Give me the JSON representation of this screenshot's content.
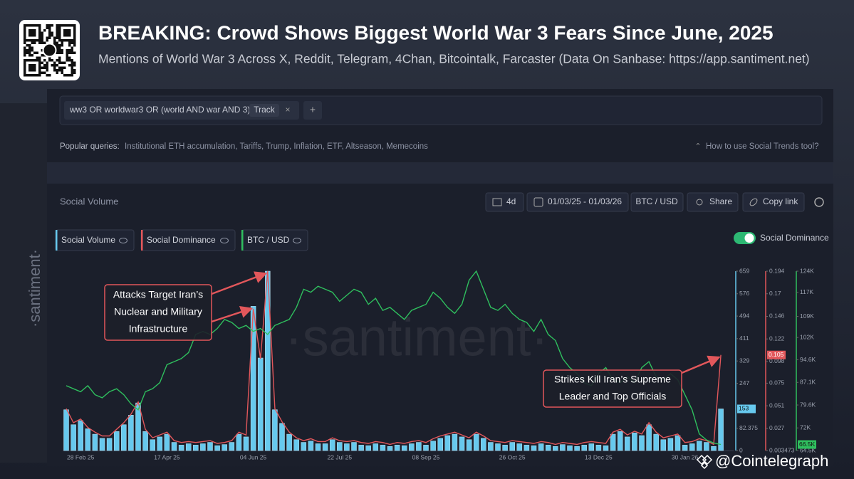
{
  "header": {
    "title": "BREAKING: Crowd Shows Biggest World War 3 Fears Since June, 2025",
    "subtitle": "Mentions of World War 3 Across X, Reddit, Telegram, 4Chan, Bitcointalk, Farcaster (Data On Sanbase: https://app.santiment.net)"
  },
  "query": {
    "text": "ww3 OR worldwar3 OR (world AND war AND 3)",
    "track_label": "Track"
  },
  "popular": {
    "label": "Popular queries:",
    "items": "Institutional ETH accumulation, Tariffs, Trump, Inflation, ETF, Altseason, Memecoins",
    "help": "How to use Social Trends tool?"
  },
  "toolbar": {
    "title": "Social Volume",
    "interval": "4d",
    "date_range": "01/03/25 - 01/03/26",
    "pair": "BTC / USD",
    "share": "Share",
    "copy": "Copy link",
    "toggle_label": "Social Dominance"
  },
  "watermark": "·santiment·",
  "credit": "@Cointelegraph",
  "chart_data": {
    "type": "bar",
    "categories": [
      null,
      null,
      "28 Feb 25",
      null,
      null,
      null,
      null,
      null,
      null,
      null,
      null,
      null,
      null,
      null,
      "17 Apr 25",
      null,
      null,
      null,
      null,
      null,
      null,
      null,
      null,
      null,
      null,
      null,
      "04 Jun 25",
      null,
      null,
      null,
      null,
      null,
      null,
      null,
      null,
      null,
      null,
      null,
      "22 Jul 25",
      null,
      null,
      null,
      null,
      null,
      null,
      null,
      null,
      null,
      null,
      null,
      "08 Sep 25",
      null,
      null,
      null,
      null,
      null,
      null,
      null,
      null,
      null,
      null,
      null,
      "26 Oct 25",
      null,
      null,
      null,
      null,
      null,
      null,
      null,
      null,
      null,
      null,
      null,
      "13 Dec 25",
      null,
      null,
      null,
      null,
      null,
      null,
      null,
      null,
      null,
      null,
      null,
      "30 Jan 26",
      null,
      null,
      null,
      null,
      null
    ],
    "series": [
      {
        "name": "Social Volume",
        "type": "bar",
        "color": "#67c9ee",
        "last_label": "153",
        "values": [
          150,
          95,
          110,
          80,
          60,
          45,
          45,
          70,
          95,
          130,
          175,
          70,
          40,
          50,
          60,
          30,
          20,
          25,
          20,
          25,
          30,
          18,
          22,
          30,
          60,
          50,
          530,
          340,
          659,
          150,
          100,
          60,
          40,
          30,
          35,
          25,
          25,
          40,
          30,
          25,
          30,
          20,
          18,
          25,
          20,
          15,
          20,
          18,
          25,
          30,
          20,
          35,
          45,
          55,
          60,
          50,
          40,
          60,
          45,
          30,
          25,
          20,
          30,
          25,
          20,
          18,
          25,
          20,
          15,
          22,
          18,
          15,
          20,
          25,
          20,
          18,
          60,
          70,
          50,
          65,
          55,
          95,
          60,
          40,
          45,
          55,
          20,
          25,
          35,
          30,
          15,
          153
        ]
      },
      {
        "name": "Social Dominance",
        "type": "line",
        "axis": "y2",
        "color": "#e2575b",
        "last_label": "0.105",
        "values": [
          0.048,
          0.033,
          0.037,
          0.028,
          0.023,
          0.019,
          0.019,
          0.026,
          0.033,
          0.042,
          0.055,
          0.026,
          0.017,
          0.02,
          0.023,
          0.014,
          0.012,
          0.013,
          0.012,
          0.013,
          0.014,
          0.011,
          0.012,
          0.014,
          0.023,
          0.02,
          0.154,
          0.101,
          0.194,
          0.048,
          0.034,
          0.023,
          0.017,
          0.014,
          0.016,
          0.013,
          0.013,
          0.017,
          0.014,
          0.013,
          0.014,
          0.012,
          0.011,
          0.013,
          0.012,
          0.01,
          0.012,
          0.011,
          0.013,
          0.014,
          0.012,
          0.016,
          0.019,
          0.021,
          0.023,
          0.02,
          0.017,
          0.023,
          0.019,
          0.014,
          0.013,
          0.012,
          0.014,
          0.013,
          0.012,
          0.011,
          0.013,
          0.012,
          0.01,
          0.012,
          0.011,
          0.01,
          0.012,
          0.013,
          0.012,
          0.011,
          0.023,
          0.026,
          0.02,
          0.024,
          0.021,
          0.033,
          0.023,
          0.017,
          0.019,
          0.021,
          0.012,
          0.013,
          0.016,
          0.014,
          0.01,
          0.105
        ]
      },
      {
        "name": "BTC / USD",
        "type": "line",
        "axis": "y3",
        "color": "#2fbf5e",
        "last_label": "66.5K",
        "values": [
          86000,
          85000,
          84000,
          86000,
          83000,
          82000,
          84000,
          85000,
          83000,
          80000,
          78000,
          84000,
          85000,
          87000,
          93000,
          94000,
          95000,
          97000,
          103000,
          104000,
          103000,
          105000,
          108000,
          107000,
          105000,
          106000,
          104000,
          105000,
          103000,
          106000,
          107000,
          108000,
          112000,
          118000,
          117000,
          119000,
          118000,
          117000,
          114000,
          116000,
          118000,
          117000,
          113000,
          115000,
          111000,
          112000,
          110000,
          108000,
          111000,
          112000,
          113000,
          117000,
          115000,
          112000,
          110000,
          113000,
          121000,
          124000,
          118000,
          112000,
          111000,
          113000,
          110000,
          108000,
          107000,
          104000,
          108000,
          103000,
          101000,
          95000,
          92000,
          90000,
          87000,
          86000,
          90000,
          92000,
          88000,
          87000,
          89000,
          87000,
          92000,
          94000,
          89000,
          88000,
          90000,
          88000,
          83000,
          78000,
          70000,
          68000,
          67000,
          66500
        ]
      }
    ],
    "ylim": [
      0,
      659
    ],
    "yticks": [
      0,
      82.375,
      247,
      329,
      411,
      494,
      576,
      659
    ],
    "y2lim": [
      0.003473,
      0.194
    ],
    "y2ticks": [
      0.003473,
      0.027,
      0.051,
      0.075,
      0.098,
      0.122,
      0.146,
      0.17,
      0.194
    ],
    "y3lim": [
      64500,
      124000
    ],
    "y3ticks": [
      {
        "value": 64500,
        "label": "64.5K"
      },
      {
        "value": 72000,
        "label": "72K"
      },
      {
        "value": 79600,
        "label": "79.6K"
      },
      {
        "value": 87100,
        "label": "87.1K"
      },
      {
        "value": 94600,
        "label": "94.6K"
      },
      {
        "value": 102000,
        "label": "102K"
      },
      {
        "value": 109000,
        "label": "109K"
      },
      {
        "value": 117000,
        "label": "117K"
      },
      {
        "value": 124000,
        "label": "124K"
      }
    ],
    "annotations": [
      {
        "lines": [
          "Attacks Target Iran’s",
          "Nuclear and Military",
          "Infrastructure"
        ]
      },
      {
        "lines": [
          "Strikes Kill Iran’s Supreme",
          "Leader and Top Officials"
        ]
      }
    ]
  }
}
